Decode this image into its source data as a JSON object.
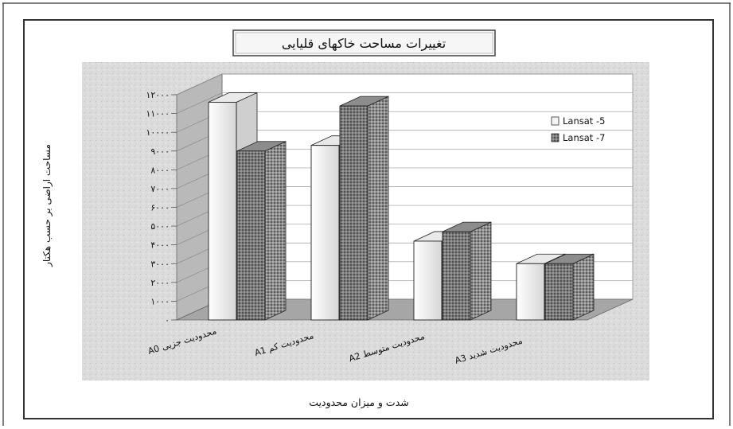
{
  "chart_data": {
    "type": "bar",
    "title": "تغییرات مساحت خاکهای قلیایی",
    "xlabel": "شدت و میزان محدودیت",
    "ylabel": "مساحت اراضی بر حسب هکتار",
    "categories": [
      "محدودیت جزیی A0",
      "محدودیت کم A1",
      "محدودیت متوسط A2",
      "محدودیت شدید A3"
    ],
    "series": [
      {
        "name": "Lansat -5",
        "values": [
          11600,
          9300,
          4200,
          3000
        ]
      },
      {
        "name": "Lansat -7",
        "values": [
          9000,
          11400,
          4700,
          3000
        ]
      }
    ],
    "ylim": [
      0,
      12000
    ],
    "yticks": [
      "۰",
      "۱۰۰۰",
      "۲۰۰۰",
      "۳۰۰۰",
      "۴۰۰۰",
      "۵۰۰۰",
      "۶۰۰۰",
      "۷۰۰۰",
      "۸۰۰۰",
      "۹۰۰۰",
      "۱۰۰۰۰",
      "۱۱۰۰۰",
      "۱۲۰۰۰"
    ],
    "grid": true,
    "legend": "right",
    "colors": {
      "Lansat -5": "#f4f4f4",
      "Lansat -7": "#6f6f6f"
    }
  }
}
